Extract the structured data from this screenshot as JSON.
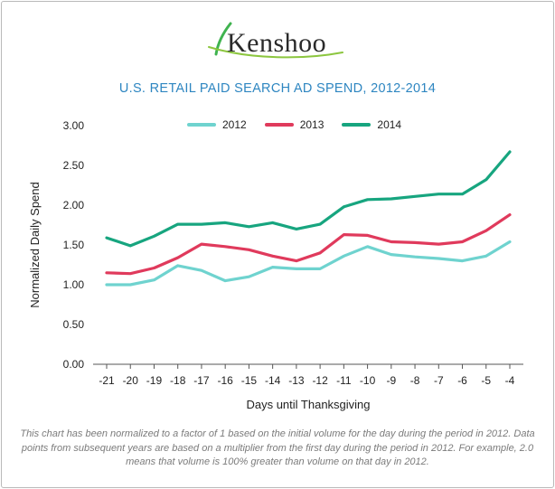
{
  "logo": {
    "text": "Kenshoo"
  },
  "colors": {
    "s2012": "#6fd3cf",
    "s2013": "#e03a5c",
    "s2014": "#17a57f",
    "title": "#2e86c1"
  },
  "chart_data": {
    "type": "line",
    "title": "U.S. RETAIL PAID SEARCH AD SPEND, 2012-2014",
    "xlabel": "Days until Thanksgiving",
    "ylabel": "Normalized Daily Spend",
    "categories": [
      "-21",
      "-20",
      "-19",
      "-18",
      "-17",
      "-16",
      "-15",
      "-14",
      "-13",
      "-12",
      "-11",
      "-10",
      "-9",
      "-8",
      "-7",
      "-6",
      "-5",
      "-4"
    ],
    "yticks": [
      "0.00",
      "0.50",
      "1.00",
      "1.50",
      "2.00",
      "2.50",
      "3.00"
    ],
    "ylim": [
      0,
      3
    ],
    "legend_position": "top",
    "series": [
      {
        "name": "2012",
        "color": "#6fd3cf",
        "values": [
          1.0,
          1.0,
          1.06,
          1.24,
          1.18,
          1.05,
          1.1,
          1.22,
          1.2,
          1.2,
          1.36,
          1.48,
          1.38,
          1.35,
          1.33,
          1.3,
          1.36,
          1.54
        ]
      },
      {
        "name": "2013",
        "color": "#e03a5c",
        "values": [
          1.15,
          1.14,
          1.21,
          1.34,
          1.51,
          1.48,
          1.44,
          1.36,
          1.3,
          1.4,
          1.63,
          1.62,
          1.54,
          1.53,
          1.51,
          1.54,
          1.68,
          1.88
        ]
      },
      {
        "name": "2014",
        "color": "#17a57f",
        "values": [
          1.59,
          1.49,
          1.61,
          1.76,
          1.76,
          1.78,
          1.73,
          1.78,
          1.7,
          1.76,
          1.98,
          2.07,
          2.08,
          2.11,
          2.14,
          2.14,
          2.32,
          2.67
        ]
      }
    ]
  },
  "note": "This chart has been normalized to a factor of 1 based on the initial volume for the day during the period in 2012. Data points from subsequent years are based on a multiplier from the first day during the period in 2012. For example, 2.0 means that volume is 100% greater than volume on that day in 2012."
}
